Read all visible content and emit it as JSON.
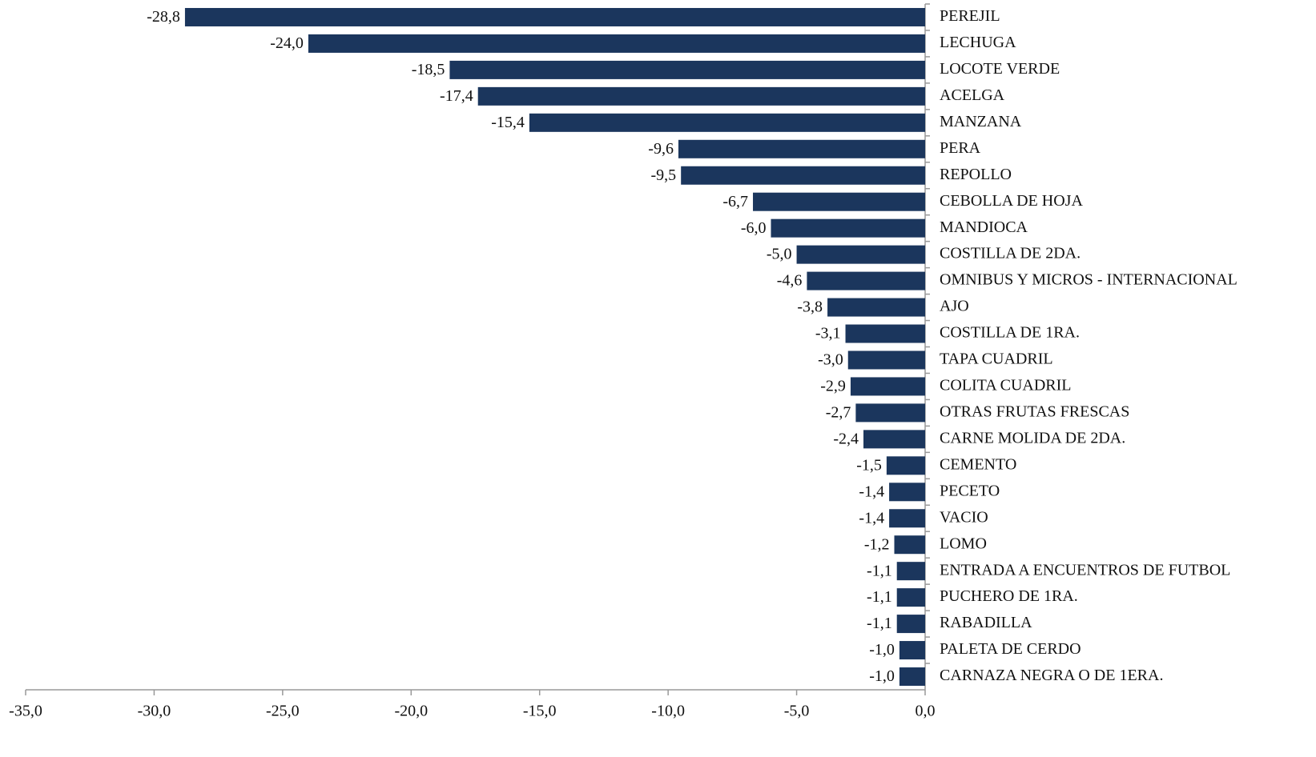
{
  "chart_data": {
    "type": "bar",
    "orientation": "horizontal",
    "color": "#1b365d",
    "categories": [
      "PEREJIL",
      "LECHUGA",
      "LOCOTE VERDE",
      "ACELGA",
      "MANZANA",
      "PERA",
      "REPOLLO",
      "CEBOLLA DE HOJA",
      "MANDIOCA",
      "COSTILLA DE 2DA.",
      "OMNIBUS Y MICROS - INTERNACIONAL",
      "AJO",
      "COSTILLA DE 1RA.",
      "TAPA CUADRIL",
      "COLITA CUADRIL",
      "OTRAS FRUTAS FRESCAS",
      "CARNE MOLIDA DE 2DA.",
      "CEMENTO",
      "PECETO",
      "VACIO",
      "LOMO",
      "ENTRADA A ENCUENTROS DE FUTBOL",
      "PUCHERO DE 1RA.",
      "RABADILLA",
      "PALETA DE CERDO",
      "CARNAZA NEGRA O DE 1ERA."
    ],
    "values": [
      -28.8,
      -24.0,
      -18.5,
      -17.4,
      -15.4,
      -9.6,
      -9.5,
      -6.7,
      -6.0,
      -5.0,
      -4.6,
      -3.8,
      -3.1,
      -3.0,
      -2.9,
      -2.7,
      -2.4,
      -1.5,
      -1.4,
      -1.4,
      -1.2,
      -1.1,
      -1.1,
      -1.1,
      -1.0,
      -1.0
    ],
    "value_labels": [
      "-28,8",
      "-24,0",
      "-18,5",
      "-17,4",
      "-15,4",
      "-9,6",
      "-9,5",
      "-6,7",
      "-6,0",
      "-5,0",
      "-4,6",
      "-3,8",
      "-3,1",
      "-3,0",
      "-2,9",
      "-2,7",
      "-2,4",
      "-1,5",
      "-1,4",
      "-1,4",
      "-1,2",
      "-1,1",
      "-1,1",
      "-1,1",
      "-1,0",
      "-1,0"
    ],
    "xlim": [
      -35,
      0
    ],
    "xticks": [
      {
        "value": -35,
        "label": "-35,0"
      },
      {
        "value": -30,
        "label": "-30,0"
      },
      {
        "value": -25,
        "label": "-25,0"
      },
      {
        "value": -20,
        "label": "-20,0"
      },
      {
        "value": -15,
        "label": "-15,0"
      },
      {
        "value": -10,
        "label": "-10,0"
      },
      {
        "value": -5,
        "label": "-5,0"
      },
      {
        "value": 0,
        "label": "0,0"
      }
    ]
  }
}
